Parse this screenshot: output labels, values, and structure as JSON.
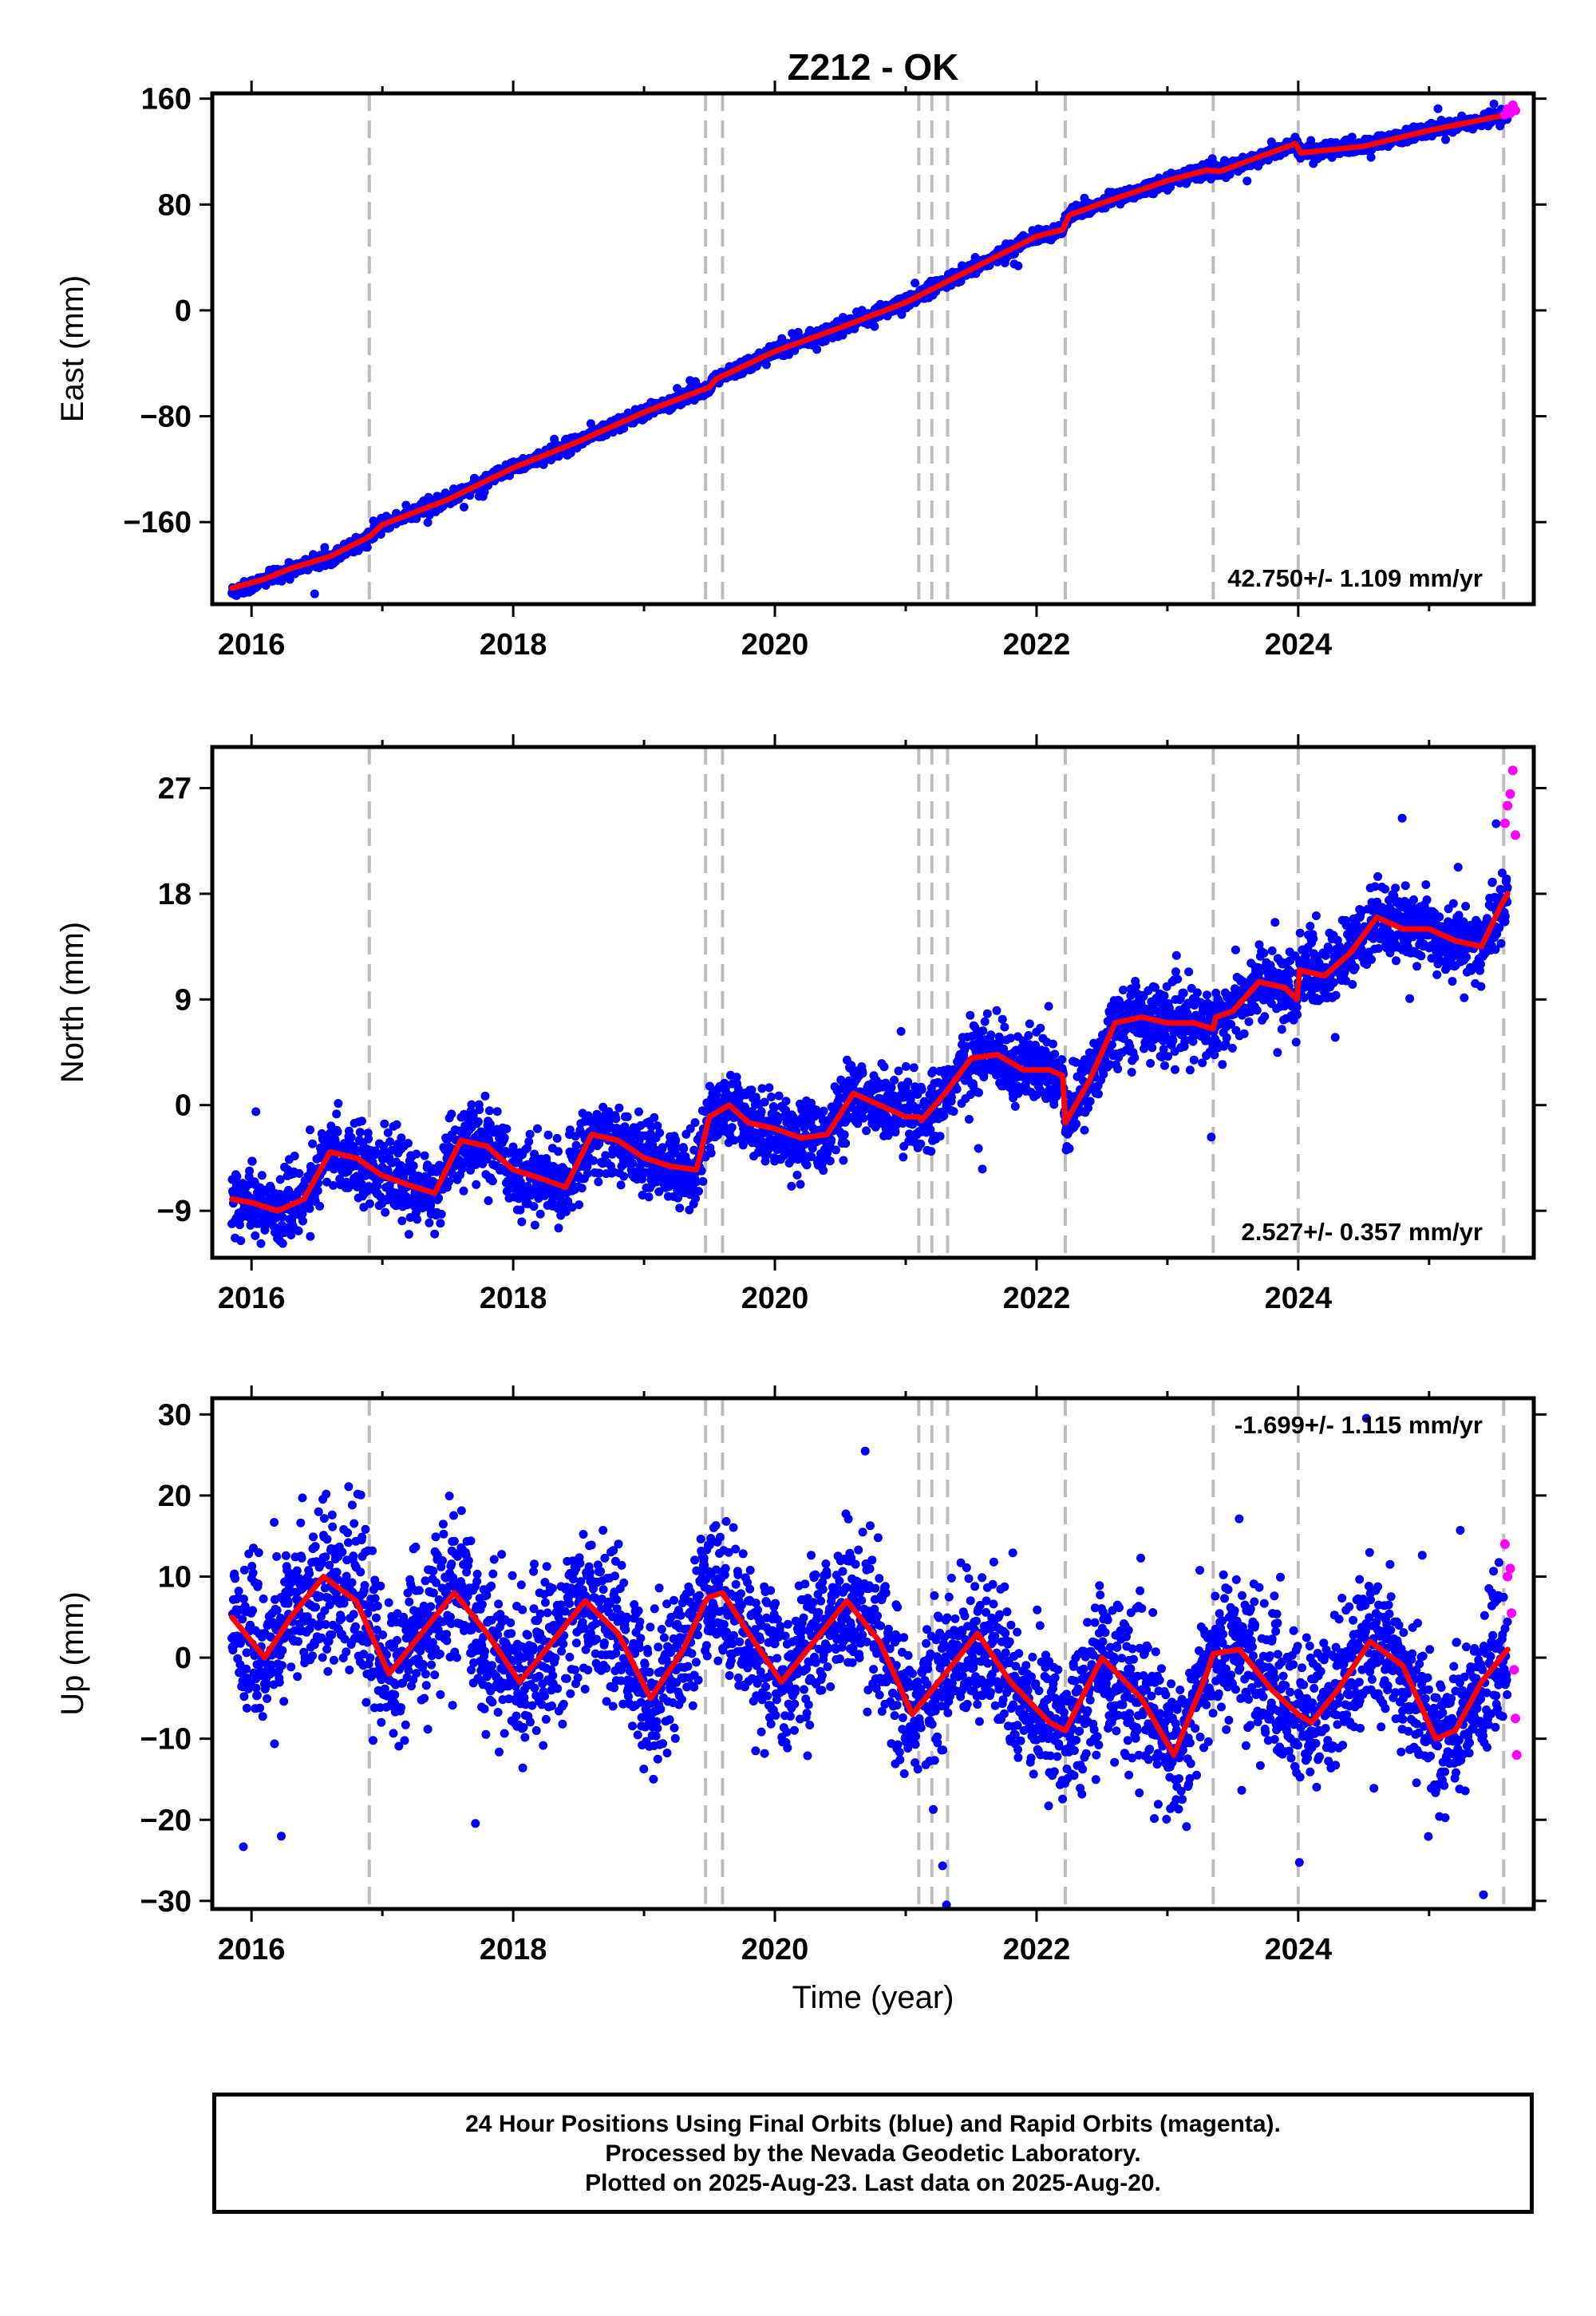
{
  "title": "Z212 - OK",
  "colors": {
    "final": "#0000ff",
    "rapid": "#ff00ff",
    "model": "#ff0000",
    "event_lines": "#bdbdbd"
  },
  "caption": [
    "24 Hour Positions Using Final Orbits (blue) and Rapid Orbits (magenta).",
    "Processed by the Nevada Geodetic Laboratory.",
    "Plotted on 2025-Aug-23. Last data on 2025-Aug-20."
  ],
  "chart_data": [
    {
      "type": "scatter",
      "ylabel": "East (mm)",
      "xlabel": "",
      "xlim": [
        2015.7,
        2025.8
      ],
      "ylim": [
        -222,
        164
      ],
      "xticks": [
        2016,
        2018,
        2020,
        2022,
        2024
      ],
      "yticks": [
        160,
        80,
        0,
        -80,
        -160
      ],
      "ytick_labels": [
        "160",
        "80",
        "0",
        "−80",
        "−160"
      ],
      "rate": "42.750+/- 1.109 mm/yr",
      "events": [
        2016.9,
        2019.47,
        2019.6,
        2021.1,
        2021.2,
        2021.32,
        2022.22,
        2023.35,
        2024.0,
        2025.57
      ],
      "series": [
        {
          "name": "Final Orbits",
          "color": "#0000ff",
          "noise": 2.4,
          "x": [
            2015.85,
            2016.1,
            2016.3,
            2016.6,
            2016.9,
            2017.0,
            2017.5,
            2018.0,
            2018.5,
            2019.0,
            2019.5,
            2019.55,
            2020.0,
            2020.5,
            2021.0,
            2021.5,
            2022.0,
            2022.2,
            2022.25,
            2022.5,
            2023.0,
            2023.3,
            2023.4,
            2023.7,
            2023.98,
            2024.02,
            2024.5,
            2025.0,
            2025.5,
            2025.6
          ],
          "y": [
            -213,
            -204,
            -196,
            -187,
            -172,
            -162,
            -143,
            -119,
            -99,
            -77,
            -58,
            -52,
            -31,
            -13,
            6,
            31,
            56,
            61,
            72,
            81,
            98,
            106,
            105,
            116,
            126,
            119,
            124,
            136,
            146,
            148
          ]
        },
        {
          "name": "Rapid Orbits",
          "color": "#ff00ff",
          "x": [
            2025.58,
            2025.6,
            2025.62,
            2025.64,
            2025.66
          ],
          "y": [
            148,
            152,
            149,
            155,
            151
          ]
        }
      ],
      "model": {
        "x": [
          2015.85,
          2016.1,
          2016.3,
          2016.6,
          2016.9,
          2017.0,
          2017.5,
          2018.0,
          2018.5,
          2019.0,
          2019.5,
          2019.55,
          2020.0,
          2020.5,
          2021.0,
          2021.5,
          2022.0,
          2022.2,
          2022.25,
          2022.5,
          2023.0,
          2023.3,
          2023.4,
          2023.7,
          2023.98,
          2024.02,
          2024.5,
          2025.0,
          2025.5,
          2025.6
        ],
        "y": [
          -210,
          -203,
          -195,
          -186,
          -171,
          -162,
          -143,
          -119,
          -99,
          -77,
          -58,
          -52,
          -31,
          -13,
          6,
          31,
          56,
          61,
          72,
          81,
          98,
          106,
          105,
          116,
          126,
          119,
          124,
          136,
          146,
          148
        ]
      }
    },
    {
      "type": "scatter",
      "ylabel": "North (mm)",
      "xlabel": "",
      "xlim": [
        2015.7,
        2025.8
      ],
      "ylim": [
        -13,
        30.5
      ],
      "xticks": [
        2016,
        2018,
        2020,
        2022,
        2024
      ],
      "yticks": [
        27,
        18,
        9,
        0,
        -9
      ],
      "ytick_labels": [
        "27",
        "18",
        "9",
        "0",
        "−9"
      ],
      "rate": "2.527+/- 0.357 mm/yr",
      "events": [
        2016.9,
        2019.47,
        2019.6,
        2021.1,
        2021.2,
        2021.32,
        2022.22,
        2023.35,
        2024.0,
        2025.57
      ],
      "series": [
        {
          "name": "Final Orbits",
          "color": "#0000ff",
          "noise": 1.5,
          "x": [
            2015.85,
            2016.0,
            2016.2,
            2016.4,
            2016.6,
            2016.8,
            2017.0,
            2017.2,
            2017.4,
            2017.6,
            2017.8,
            2018.0,
            2018.2,
            2018.4,
            2018.6,
            2018.8,
            2019.0,
            2019.2,
            2019.4,
            2019.5,
            2019.65,
            2019.8,
            2020.0,
            2020.2,
            2020.4,
            2020.6,
            2020.8,
            2021.0,
            2021.1,
            2021.12,
            2021.3,
            2021.5,
            2021.7,
            2021.9,
            2022.1,
            2022.2,
            2022.22,
            2022.4,
            2022.6,
            2022.8,
            2023.0,
            2023.2,
            2023.35,
            2023.37,
            2023.5,
            2023.7,
            2023.9,
            2023.99,
            2024.01,
            2024.2,
            2024.4,
            2024.6,
            2024.8,
            2025.0,
            2025.2,
            2025.4,
            2025.55,
            2025.6
          ],
          "y": [
            -8,
            -8.3,
            -9,
            -8,
            -4,
            -4.5,
            -6,
            -6.8,
            -7.5,
            -3,
            -3.5,
            -5.5,
            -6.2,
            -7,
            -2.5,
            -3,
            -4.5,
            -5.2,
            -5.5,
            -1,
            0,
            -1.5,
            -2,
            -2.8,
            -2.5,
            1,
            0,
            -1,
            -1,
            -1.3,
            1,
            4,
            4.3,
            3,
            3,
            2.5,
            -1.5,
            2,
            7,
            7.5,
            7,
            7,
            6.5,
            7.5,
            8,
            10.5,
            10,
            9,
            11.5,
            11,
            13,
            16,
            15,
            15,
            14,
            13.5,
            17,
            18
          ]
        },
        {
          "name": "Rapid Orbits",
          "color": "#ff00ff",
          "x": [
            2025.58,
            2025.6,
            2025.62,
            2025.64,
            2025.66
          ],
          "y": [
            24,
            25.5,
            26.5,
            28.5,
            23
          ]
        }
      ],
      "model": {
        "x": [
          2015.85,
          2016.0,
          2016.2,
          2016.4,
          2016.6,
          2016.8,
          2017.0,
          2017.2,
          2017.4,
          2017.6,
          2017.8,
          2018.0,
          2018.2,
          2018.4,
          2018.6,
          2018.8,
          2019.0,
          2019.2,
          2019.4,
          2019.5,
          2019.65,
          2019.8,
          2020.0,
          2020.2,
          2020.4,
          2020.6,
          2020.8,
          2021.0,
          2021.1,
          2021.12,
          2021.3,
          2021.5,
          2021.7,
          2021.9,
          2022.1,
          2022.2,
          2022.22,
          2022.4,
          2022.6,
          2022.8,
          2023.0,
          2023.2,
          2023.35,
          2023.37,
          2023.5,
          2023.7,
          2023.9,
          2023.99,
          2024.01,
          2024.2,
          2024.4,
          2024.6,
          2024.8,
          2025.0,
          2025.2,
          2025.4,
          2025.55,
          2025.6
        ],
        "y": [
          -8,
          -8.3,
          -9,
          -8,
          -4,
          -4.5,
          -6,
          -6.8,
          -7.5,
          -3,
          -3.5,
          -5.5,
          -6.2,
          -7,
          -2.5,
          -3,
          -4.5,
          -5.2,
          -5.5,
          -1,
          0,
          -1.5,
          -2,
          -2.8,
          -2.5,
          1,
          0,
          -1,
          -1,
          -1.3,
          1,
          4,
          4.3,
          3,
          3,
          2.5,
          -1.5,
          2,
          7,
          7.5,
          7,
          7,
          6.5,
          7.5,
          8,
          10.5,
          10,
          9,
          11.5,
          11,
          13,
          16,
          15,
          15,
          14,
          13.5,
          17,
          18
        ]
      }
    },
    {
      "type": "scatter",
      "ylabel": "Up (mm)",
      "xlabel": "Time (year)",
      "xlim": [
        2015.7,
        2025.8
      ],
      "ylim": [
        -31,
        32
      ],
      "xticks": [
        2016,
        2018,
        2020,
        2022,
        2024
      ],
      "yticks": [
        30,
        20,
        10,
        0,
        -10,
        -20,
        -30
      ],
      "ytick_labels": [
        "30",
        "20",
        "10",
        "0",
        "−10",
        "−20",
        "−30"
      ],
      "rate": "-1.699+/- 1.115 mm/yr",
      "events": [
        2016.9,
        2019.47,
        2019.6,
        2021.1,
        2021.2,
        2021.32,
        2022.22,
        2023.35,
        2024.0,
        2025.57
      ],
      "series": [
        {
          "name": "Final Orbits",
          "color": "#0000ff",
          "noise": 4.5,
          "x": [
            2015.85,
            2016.1,
            2016.3,
            2016.55,
            2016.8,
            2017.05,
            2017.3,
            2017.55,
            2017.8,
            2018.05,
            2018.3,
            2018.55,
            2018.8,
            2019.05,
            2019.3,
            2019.47,
            2019.5,
            2019.6,
            2019.8,
            2020.05,
            2020.3,
            2020.55,
            2020.8,
            2021.05,
            2021.1,
            2021.3,
            2021.55,
            2021.8,
            2022.1,
            2022.22,
            2022.5,
            2022.8,
            2023.05,
            2023.3,
            2023.35,
            2023.55,
            2023.8,
            2024.0,
            2024.1,
            2024.3,
            2024.55,
            2024.8,
            2025.05,
            2025.2,
            2025.4,
            2025.6
          ],
          "y": [
            5,
            0,
            5,
            10,
            7,
            -2,
            3,
            8,
            3,
            -3,
            2,
            7,
            3,
            -5,
            1,
            7,
            7.5,
            8,
            3,
            -3,
            2,
            7,
            2,
            -7,
            -6,
            -2,
            3,
            -3,
            -8,
            -9,
            0,
            -5,
            -12,
            -2,
            0.5,
            1,
            -4,
            -7,
            -8,
            -4,
            2,
            -1,
            -10,
            -9,
            -3,
            1
          ]
        },
        {
          "name": "Rapid Orbits",
          "color": "#ff00ff",
          "x": [
            2025.58,
            2025.6,
            2025.62,
            2025.63,
            2025.65,
            2025.66,
            2025.67
          ],
          "y": [
            14,
            10,
            11,
            5.5,
            -1.5,
            -7.5,
            -12
          ]
        }
      ],
      "model": {
        "x": [
          2015.85,
          2016.1,
          2016.3,
          2016.55,
          2016.8,
          2017.05,
          2017.3,
          2017.55,
          2017.8,
          2018.05,
          2018.3,
          2018.55,
          2018.8,
          2019.05,
          2019.3,
          2019.47,
          2019.5,
          2019.6,
          2019.8,
          2020.05,
          2020.3,
          2020.55,
          2020.8,
          2021.05,
          2021.1,
          2021.3,
          2021.55,
          2021.8,
          2022.1,
          2022.22,
          2022.5,
          2022.8,
          2023.05,
          2023.3,
          2023.35,
          2023.55,
          2023.8,
          2024.0,
          2024.1,
          2024.3,
          2024.55,
          2024.8,
          2025.05,
          2025.2,
          2025.4,
          2025.6
        ],
        "y": [
          5,
          0,
          5,
          10,
          7,
          -2,
          3,
          8,
          3,
          -3,
          2,
          7,
          3,
          -5,
          1,
          7,
          7.5,
          8,
          3,
          -3,
          2,
          7,
          2,
          -7,
          -6,
          -2,
          3,
          -3,
          -8,
          -9,
          0,
          -5,
          -12,
          -2,
          0.5,
          1,
          -4,
          -7,
          -8,
          -4,
          2,
          -1,
          -10,
          -9,
          -3,
          1
        ]
      }
    }
  ]
}
